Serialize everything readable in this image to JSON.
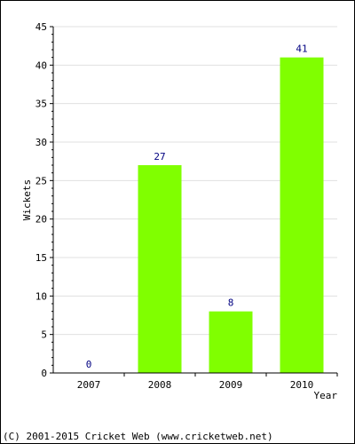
{
  "chart_data": {
    "type": "bar",
    "categories": [
      "2007",
      "2008",
      "2009",
      "2010"
    ],
    "values": [
      0,
      27,
      8,
      41
    ],
    "data_labels": [
      "0",
      "27",
      "8",
      "41"
    ],
    "xlabel": "Year",
    "ylabel": "Wickets",
    "ylim": [
      0,
      45
    ],
    "yticks": [
      0,
      5,
      10,
      15,
      20,
      25,
      30,
      35,
      40,
      45
    ],
    "grid": true,
    "bar_color": "#80ff00",
    "label_color": "#000080"
  },
  "footer": {
    "copyright": "(C) 2001-2015 Cricket Web (www.cricketweb.net)"
  }
}
